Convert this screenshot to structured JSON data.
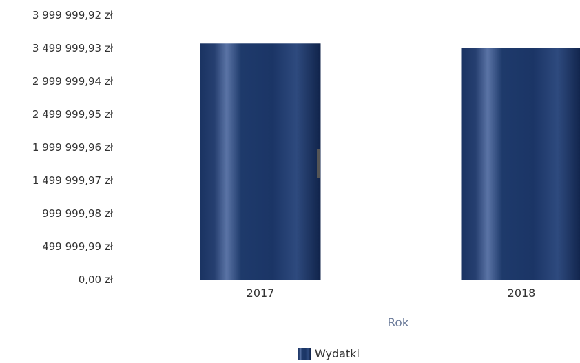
{
  "chart_data": {
    "type": "bar",
    "categories": [
      "2017",
      "2018"
    ],
    "series": [
      {
        "name": "Wydatki",
        "values": [
          3570000,
          3500000
        ]
      }
    ],
    "xlabel": "Rok",
    "ylabel": "",
    "ylim": [
      0,
      3999999.92
    ],
    "yticks": [
      "0,00 zł",
      "499 999,99 zł",
      "999 999,98 zł",
      "1 499 999,97 zł",
      "1 999 999,96 zł",
      "2 499 999,95 zł",
      "2 999 999,94 zł",
      "3 499 999,93 zł",
      "3 999 999,92 zł"
    ],
    "legend_position": "bottom",
    "grid": false,
    "colors": {
      "bar": "#1e3a6b",
      "bar_highlight": "#5b74a6",
      "bar_dark": "#10234a"
    }
  }
}
